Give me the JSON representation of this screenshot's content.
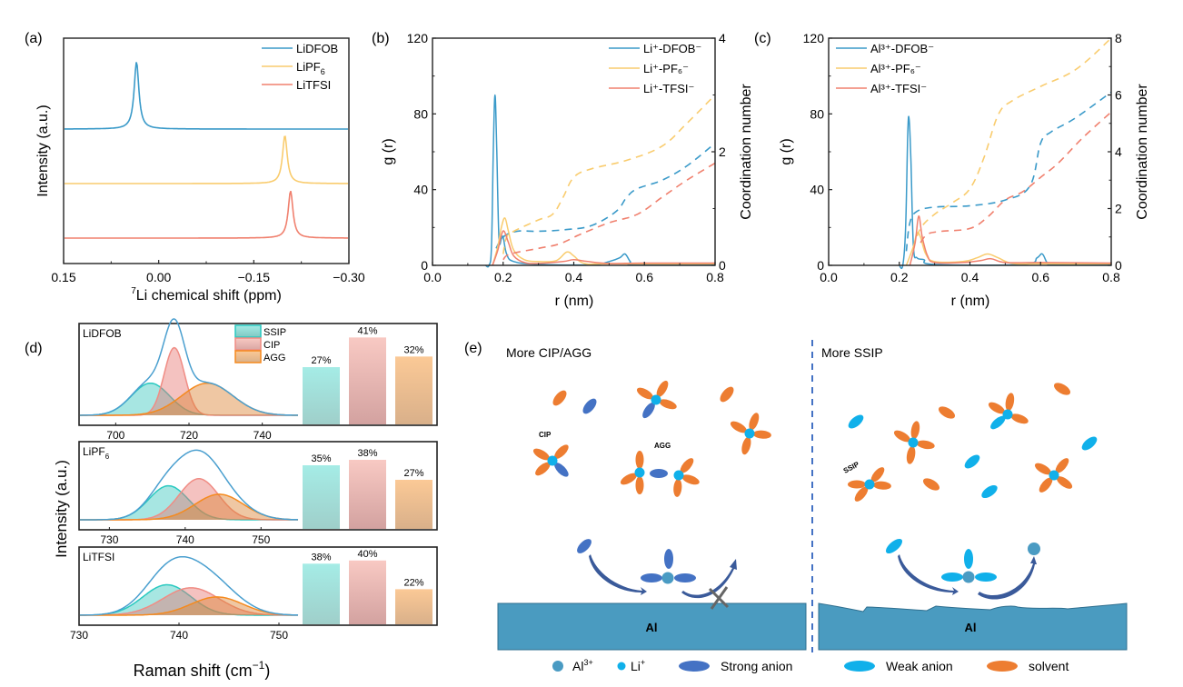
{
  "colors": {
    "blue": "#3a9ac9",
    "yellow": "#f9cc6e",
    "red": "#f0806e",
    "ssip": "#29c9c0",
    "cip": "#f08c84",
    "agg": "#f58a1e",
    "ssip_fill": "#9fe6e0",
    "cip_fill": "#f3bcb6",
    "agg_fill": "#f5c48e",
    "envelope": "#4a9fcf",
    "strong_anion": "#4472c4",
    "weak_anion": "#10b0ea",
    "solvent": "#ed7d31",
    "li_ion": "#10b0ea",
    "al_ion": "#4a9bc3",
    "al_block": "#4a9bc0",
    "divider": "#4472c4"
  },
  "chart_data": [
    {
      "id": "a",
      "panel_label": "(a)",
      "type": "line",
      "xlabel_sup": "7",
      "xlabel": "Li chemical shift (ppm)",
      "ylabel": "Intensity (a.u.)",
      "xlim": [
        0.15,
        -0.3
      ],
      "xticks": [
        0.15,
        0.0,
        -0.15,
        -0.3
      ],
      "xtick_labels": [
        "0.15",
        "0.00",
        "−0.15",
        "−0.30"
      ],
      "legend_position": "top-right",
      "series": [
        {
          "name": "LiDFOB",
          "name_sub": "",
          "color_key": "blue",
          "peak_ppm": 0.035,
          "width_ppm": 0.0045,
          "offset": 2.0,
          "height": 1.0
        },
        {
          "name": "LiPF",
          "name_sub": "6",
          "color_key": "yellow",
          "peak_ppm": -0.199,
          "width_ppm": 0.0045,
          "offset": 1.0,
          "height": 0.7
        },
        {
          "name": "LiTFSI",
          "name_sub": "",
          "color_key": "red",
          "peak_ppm": -0.208,
          "width_ppm": 0.0045,
          "offset": 0.0,
          "height": 0.7
        }
      ]
    },
    {
      "id": "b",
      "panel_label": "(b)",
      "type": "line",
      "xlabel": "r (nm)",
      "ylabel": "g (r)",
      "y2label": "Coordination number",
      "xlim": [
        0,
        0.8
      ],
      "ylim": [
        0,
        120
      ],
      "y2lim": [
        0,
        4
      ],
      "xticks": [
        0,
        0.2,
        0.4,
        0.6,
        0.8
      ],
      "xtick_labels": [
        "0.0",
        "0.2",
        "0.4",
        "0.6",
        "0.8"
      ],
      "yticks": [
        0,
        40,
        80,
        120
      ],
      "ytick_labels": [
        "0",
        "40",
        "80",
        "120"
      ],
      "y2ticks": [
        0,
        2,
        4
      ],
      "y2tick_labels": [
        "0",
        "2",
        "4"
      ],
      "legend_position": "top-right",
      "series": [
        {
          "name": "Li⁺-DFOB⁻",
          "color_key": "blue",
          "gr": [
            [
              0.15,
              0
            ],
            [
              0.16,
              0
            ],
            [
              0.167,
              10
            ],
            [
              0.172,
              60
            ],
            [
              0.177,
              90
            ],
            [
              0.182,
              60
            ],
            [
              0.188,
              15
            ],
            [
              0.195,
              14
            ],
            [
              0.2,
              15
            ],
            [
              0.21,
              6
            ],
            [
              0.23,
              2
            ],
            [
              0.3,
              0.5
            ],
            [
              0.45,
              0.3
            ],
            [
              0.5,
              2
            ],
            [
              0.53,
              4
            ],
            [
              0.545,
              6
            ],
            [
              0.56,
              2
            ],
            [
              0.575,
              0.3
            ],
            [
              0.8,
              0.2
            ]
          ],
          "cn": [
            [
              0.18,
              0.3
            ],
            [
              0.2,
              0.5
            ],
            [
              0.24,
              0.6
            ],
            [
              0.3,
              0.6
            ],
            [
              0.38,
              0.63
            ],
            [
              0.45,
              0.7
            ],
            [
              0.52,
              0.95
            ],
            [
              0.55,
              1.2
            ],
            [
              0.58,
              1.35
            ],
            [
              0.65,
              1.5
            ],
            [
              0.72,
              1.75
            ],
            [
              0.8,
              2.15
            ]
          ]
        },
        {
          "name": "Li⁺-PF₆⁻",
          "color_key": "yellow",
          "gr": [
            [
              0.17,
              0
            ],
            [
              0.185,
              10
            ],
            [
              0.195,
              20
            ],
            [
              0.205,
              25
            ],
            [
              0.215,
              18
            ],
            [
              0.23,
              8
            ],
            [
              0.26,
              3
            ],
            [
              0.3,
              2
            ],
            [
              0.35,
              2.5
            ],
            [
              0.38,
              7
            ],
            [
              0.4,
              5
            ],
            [
              0.43,
              1
            ],
            [
              0.5,
              0.8
            ],
            [
              0.8,
              0.8
            ]
          ],
          "cn": [
            [
              0.2,
              0.2
            ],
            [
              0.21,
              0.5
            ],
            [
              0.23,
              0.6
            ],
            [
              0.3,
              0.8
            ],
            [
              0.34,
              0.9
            ],
            [
              0.37,
              1.2
            ],
            [
              0.4,
              1.55
            ],
            [
              0.45,
              1.7
            ],
            [
              0.55,
              1.85
            ],
            [
              0.65,
              2.1
            ],
            [
              0.72,
              2.5
            ],
            [
              0.8,
              3.0
            ]
          ]
        },
        {
          "name": "Li⁺-TFSI⁻",
          "color_key": "red",
          "gr": [
            [
              0.17,
              0
            ],
            [
              0.185,
              8
            ],
            [
              0.195,
              16
            ],
            [
              0.203,
              18
            ],
            [
              0.215,
              12
            ],
            [
              0.23,
              5
            ],
            [
              0.26,
              1.5
            ],
            [
              0.3,
              1
            ],
            [
              0.37,
              2
            ],
            [
              0.4,
              3
            ],
            [
              0.44,
              2
            ],
            [
              0.5,
              1
            ],
            [
              0.6,
              1.2
            ],
            [
              0.8,
              1.2
            ]
          ],
          "cn": [
            [
              0.2,
              0.1
            ],
            [
              0.22,
              0.2
            ],
            [
              0.3,
              0.3
            ],
            [
              0.36,
              0.38
            ],
            [
              0.42,
              0.55
            ],
            [
              0.5,
              0.75
            ],
            [
              0.58,
              0.9
            ],
            [
              0.65,
              1.2
            ],
            [
              0.72,
              1.5
            ],
            [
              0.8,
              1.8
            ]
          ]
        }
      ]
    },
    {
      "id": "c",
      "panel_label": "(c)",
      "type": "line",
      "xlabel": "r (nm)",
      "ylabel": "g (r)",
      "y2label": "Coordination number",
      "xlim": [
        0,
        0.8
      ],
      "ylim": [
        0,
        120
      ],
      "y2lim": [
        0,
        8
      ],
      "xticks": [
        0,
        0.2,
        0.4,
        0.6,
        0.8
      ],
      "xtick_labels": [
        "0.0",
        "0.2",
        "0.4",
        "0.6",
        "0.8"
      ],
      "yticks": [
        0,
        40,
        80,
        120
      ],
      "ytick_labels": [
        "0",
        "40",
        "80",
        "120"
      ],
      "y2ticks": [
        0,
        2,
        4,
        6,
        8
      ],
      "y2tick_labels": [
        "0",
        "2",
        "4",
        "6",
        "8"
      ],
      "legend_position": "top-left",
      "series": [
        {
          "name": "Al³⁺-DFOB⁻",
          "color_key": "blue",
          "gr": [
            [
              0.2,
              0
            ],
            [
              0.21,
              0
            ],
            [
              0.218,
              20
            ],
            [
              0.224,
              70
            ],
            [
              0.228,
              77
            ],
            [
              0.233,
              55
            ],
            [
              0.24,
              10
            ],
            [
              0.25,
              4
            ],
            [
              0.27,
              3
            ],
            [
              0.3,
              0.5
            ],
            [
              0.55,
              0.5
            ],
            [
              0.59,
              4
            ],
            [
              0.605,
              6
            ],
            [
              0.62,
              1
            ],
            [
              0.64,
              0.2
            ],
            [
              0.8,
              0.2
            ]
          ],
          "cn": [
            [
              0.22,
              0.5
            ],
            [
              0.23,
              1.5
            ],
            [
              0.25,
              1.9
            ],
            [
              0.3,
              2.05
            ],
            [
              0.4,
              2.1
            ],
            [
              0.5,
              2.3
            ],
            [
              0.57,
              2.8
            ],
            [
              0.6,
              4.3
            ],
            [
              0.63,
              4.7
            ],
            [
              0.7,
              5.2
            ],
            [
              0.8,
              6.1
            ]
          ]
        },
        {
          "name": "Al³⁺-PF₆⁻",
          "color_key": "yellow",
          "gr": [
            [
              0.22,
              0
            ],
            [
              0.24,
              10
            ],
            [
              0.25,
              17
            ],
            [
              0.26,
              15
            ],
            [
              0.275,
              6
            ],
            [
              0.3,
              2
            ],
            [
              0.38,
              2
            ],
            [
              0.42,
              4
            ],
            [
              0.45,
              6
            ],
            [
              0.48,
              4
            ],
            [
              0.52,
              1
            ],
            [
              0.6,
              0.8
            ],
            [
              0.8,
              0.8
            ]
          ],
          "cn": [
            [
              0.24,
              0.6
            ],
            [
              0.26,
              1.3
            ],
            [
              0.3,
              1.8
            ],
            [
              0.35,
              2.2
            ],
            [
              0.4,
              2.7
            ],
            [
              0.44,
              3.8
            ],
            [
              0.48,
              5.3
            ],
            [
              0.52,
              5.8
            ],
            [
              0.6,
              6.3
            ],
            [
              0.7,
              6.9
            ],
            [
              0.8,
              8.0
            ]
          ]
        },
        {
          "name": "Al³⁺-TFSI⁻",
          "color_key": "red",
          "gr": [
            [
              0.23,
              0
            ],
            [
              0.245,
              12
            ],
            [
              0.255,
              26
            ],
            [
              0.265,
              15
            ],
            [
              0.28,
              5
            ],
            [
              0.3,
              1.5
            ],
            [
              0.38,
              1.5
            ],
            [
              0.43,
              2.5
            ],
            [
              0.46,
              3.5
            ],
            [
              0.5,
              1.5
            ],
            [
              0.6,
              1.5
            ],
            [
              0.8,
              1.2
            ]
          ],
          "cn": [
            [
              0.26,
              0.8
            ],
            [
              0.28,
              1.1
            ],
            [
              0.32,
              1.2
            ],
            [
              0.4,
              1.3
            ],
            [
              0.45,
              1.7
            ],
            [
              0.5,
              2.3
            ],
            [
              0.55,
              2.6
            ],
            [
              0.6,
              3.1
            ],
            [
              0.65,
              3.6
            ],
            [
              0.72,
              4.5
            ],
            [
              0.8,
              5.4
            ]
          ]
        }
      ]
    },
    {
      "id": "d",
      "panel_label": "(d)",
      "type": "area",
      "ylabel": "Intensity (a.u.)",
      "xlabel": "Raman shift (cm",
      "xlabel_sup": "−1",
      "xlabel_tail": ")",
      "legend": [
        "SSIP",
        "CIP",
        "AGG"
      ],
      "legend_position": "top-center",
      "subplots": [
        {
          "label": "LiDFOB",
          "label_sub": "",
          "xlim": [
            690,
            750
          ],
          "xticks": [
            700,
            720,
            740
          ],
          "xtick_labels": [
            "700",
            "720",
            "740"
          ],
          "components": {
            "SSIP": {
              "center": 709.5,
              "sigma": 5.2,
              "amp": 0.38
            },
            "CIP": {
              "center": 716,
              "sigma": 2.8,
              "amp": 0.8
            },
            "AGG": {
              "center": 725,
              "sigma": 7,
              "amp": 0.38
            }
          },
          "bars": [
            27,
            41,
            32
          ],
          "bar_labels": [
            "27%",
            "41%",
            "32%"
          ]
        },
        {
          "label": "LiPF",
          "label_sub": "6",
          "xlim": [
            726,
            755
          ],
          "xticks": [
            730,
            740,
            750
          ],
          "xtick_labels": [
            "730",
            "740",
            "750"
          ],
          "components": {
            "SSIP": {
              "center": 737.8,
              "sigma": 2.6,
              "amp": 0.48
            },
            "CIP": {
              "center": 741.8,
              "sigma": 2.6,
              "amp": 0.58
            },
            "AGG": {
              "center": 744.5,
              "sigma": 3.2,
              "amp": 0.36
            }
          },
          "bars": [
            35,
            38,
            27
          ],
          "bar_labels": [
            "35%",
            "38%",
            "27%"
          ]
        },
        {
          "label": "LiTFSI",
          "label_sub": "",
          "xlim": [
            730,
            752
          ],
          "xticks": [
            730,
            740,
            750
          ],
          "xtick_labels": [
            "730",
            "740",
            "750"
          ],
          "components": {
            "SSIP": {
              "center": 738.8,
              "sigma": 2.4,
              "amp": 0.5
            },
            "CIP": {
              "center": 741.2,
              "sigma": 2.8,
              "amp": 0.45
            },
            "AGG": {
              "center": 743.8,
              "sigma": 2.6,
              "amp": 0.3
            }
          },
          "bars": [
            38,
            40,
            22
          ],
          "bar_labels": [
            "38%",
            "40%",
            "22%"
          ]
        }
      ]
    }
  ],
  "schematic": {
    "panel_label": "(e)",
    "left_title": "More CIP/AGG",
    "right_title": "More SSIP",
    "cip_label": "CIP",
    "agg_label": "AGG",
    "ssip_label": "SSIP",
    "al_label_left": "Al",
    "al_label_right": "Al",
    "legend": [
      {
        "key": "al_ion",
        "text": "Al",
        "sup": "3+"
      },
      {
        "key": "li_ion",
        "text": "Li",
        "sup": "+"
      },
      {
        "key": "strong_anion",
        "text": "Strong anion",
        "sup": ""
      },
      {
        "key": "weak_anion",
        "text": "Weak anion",
        "sup": ""
      },
      {
        "key": "solvent",
        "text": "solvent",
        "sup": ""
      }
    ]
  }
}
